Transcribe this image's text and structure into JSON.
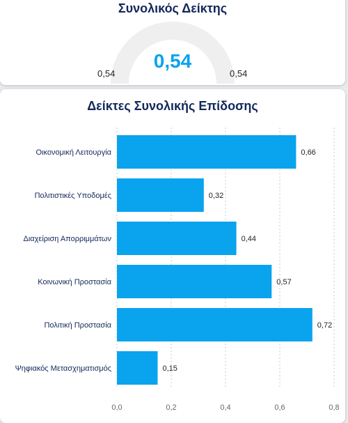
{
  "gauge": {
    "title": "Συνολικός Δείκτης",
    "value_label": "0,54",
    "min_label": "0,54",
    "max_label": "0,54",
    "value": 0.54
  },
  "chart_data": {
    "type": "bar",
    "orientation": "horizontal",
    "title": "Δείκτες Συνολικής Επίδοσης",
    "categories": [
      "Οικονομική Λειτουργία",
      "Πολιτιστικές Υποδομές",
      "Διαχείριση Απορριμμάτων",
      "Κοινωνική Προστασία",
      "Πολιτική Προστασία",
      "Ψηφιακός Μετασχηματισμός"
    ],
    "values": [
      0.66,
      0.32,
      0.44,
      0.57,
      0.72,
      0.15
    ],
    "value_labels": [
      "0,66",
      "0,32",
      "0,44",
      "0,57",
      "0,72",
      "0,15"
    ],
    "xlim": [
      0,
      0.8
    ],
    "xticks": [
      0,
      0.2,
      0.4,
      0.6,
      0.8
    ],
    "xtick_labels": [
      "0,0",
      "0,2",
      "0,4",
      "0,6",
      "0,8"
    ],
    "grid": true,
    "bar_color": "#0aa3ee"
  }
}
